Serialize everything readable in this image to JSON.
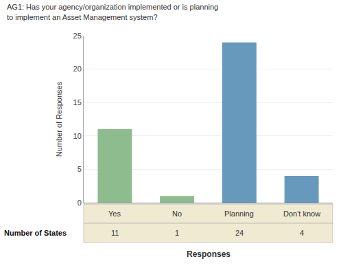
{
  "chart_data": {
    "type": "bar",
    "title": "AG1: Has your agency/organization implemented or is planning to implement an Asset Management system?",
    "categories": [
      "Yes",
      "No",
      "Planning",
      "Don't know"
    ],
    "values": [
      11,
      1,
      24,
      4
    ],
    "colors": [
      "#8fbc8f",
      "#8fbc8f",
      "#6699bb",
      "#6699bb"
    ],
    "ylabel": "Number of Responses",
    "xlabel": "Responses",
    "ylim": [
      0,
      25
    ],
    "yticks": [
      0,
      5,
      10,
      15,
      20,
      25
    ],
    "grid": true,
    "data_labels": true,
    "annotations": [
      "Number of States"
    ]
  }
}
